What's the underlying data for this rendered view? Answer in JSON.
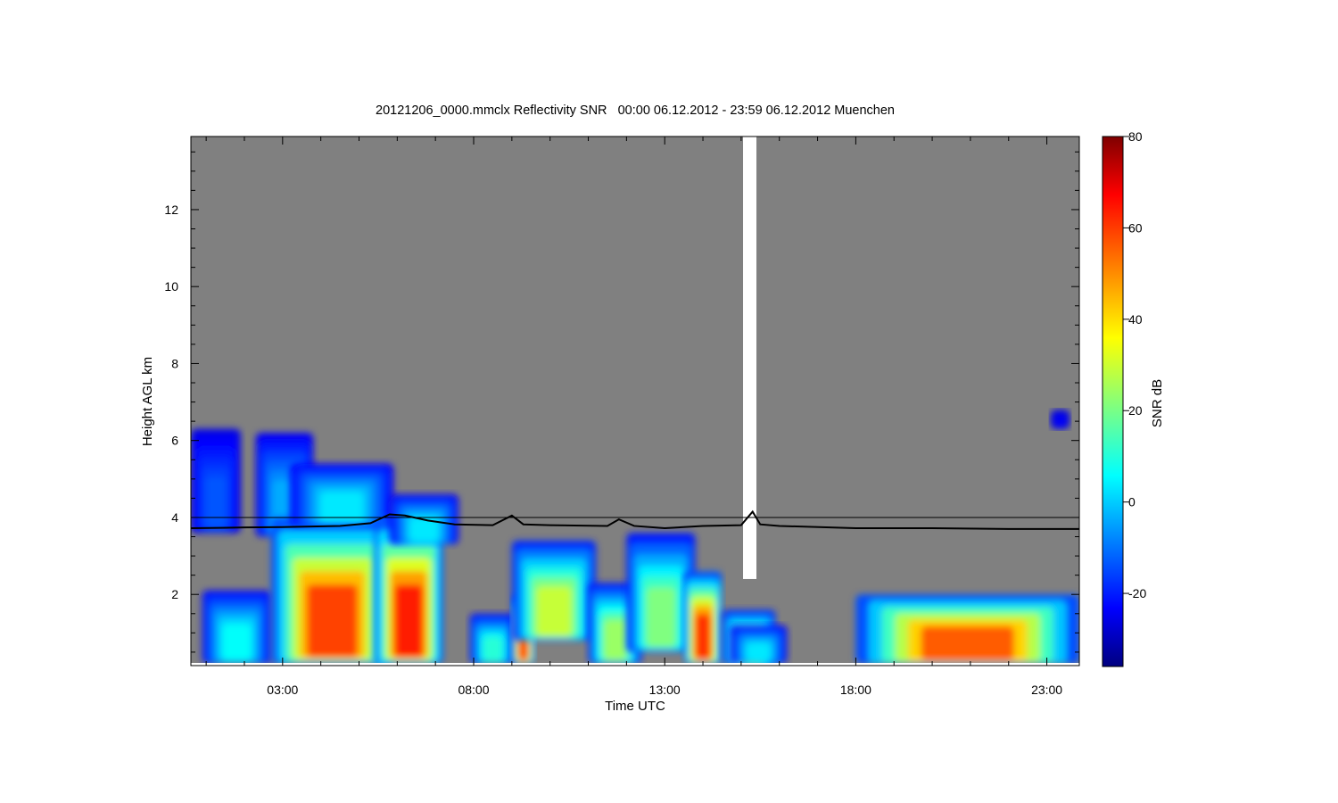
{
  "chart_data": {
    "type": "heatmap",
    "title": "20121206_0000.mmclx Reflectivity SNR   00:00 06.12.2012 - 23:59 06.12.2012 Muenchen",
    "xlabel": "Time UTC",
    "ylabel": "Height AGL km",
    "x_unit": "hours UTC",
    "xlim": [
      0.6,
      23.85
    ],
    "ylim": [
      0.15,
      13.9
    ],
    "x_ticks": [
      3,
      8,
      13,
      18,
      23
    ],
    "x_tick_labels": [
      "03:00",
      "08:00",
      "13:00",
      "18:00",
      "23:00"
    ],
    "y_ticks": [
      2,
      4,
      6,
      8,
      10,
      12
    ],
    "y_tick_labels": [
      "2",
      "4",
      "6",
      "8",
      "10",
      "12"
    ],
    "background_color": "#808080",
    "colorbar": {
      "label": "SNR dB",
      "range": [
        -36,
        80
      ],
      "ticks": [
        -20,
        0,
        20,
        40,
        60,
        80
      ],
      "tick_labels": [
        "-20",
        "0",
        "20",
        "40",
        "60",
        "80"
      ],
      "colormap": "jet",
      "position": "right"
    },
    "reference_line": {
      "y": 4.0,
      "color": "#000000"
    },
    "series": [
      {
        "type": "line",
        "color": "#000000",
        "x": [
          0.6,
          2.0,
          3.0,
          4.5,
          5.3,
          5.8,
          6.2,
          6.8,
          7.5,
          8.5,
          9.0,
          9.3,
          10.0,
          11.5,
          11.8,
          12.2,
          13.0,
          14.0,
          15.0,
          15.3,
          15.5,
          16.0,
          18.0,
          20.0,
          22.0,
          23.85
        ],
        "y": [
          3.72,
          3.74,
          3.75,
          3.78,
          3.85,
          4.08,
          4.05,
          3.92,
          3.82,
          3.8,
          4.05,
          3.82,
          3.8,
          3.78,
          3.95,
          3.78,
          3.72,
          3.78,
          3.8,
          4.15,
          3.82,
          3.78,
          3.72,
          3.72,
          3.7,
          3.7
        ]
      }
    ],
    "echo_regions": [
      {
        "x": [
          0.6,
          1.9
        ],
        "y": [
          3.6,
          6.3
        ],
        "snr_peak": -12
      },
      {
        "x": [
          0.9,
          2.7
        ],
        "y": [
          0.2,
          2.1
        ],
        "snr_peak": 8
      },
      {
        "x": [
          2.3,
          3.8
        ],
        "y": [
          3.5,
          6.2
        ],
        "snr_peak": -2
      },
      {
        "x": [
          2.7,
          5.9
        ],
        "y": [
          0.2,
          4.0
        ],
        "snr_peak": 58
      },
      {
        "x": [
          3.2,
          5.9
        ],
        "y": [
          3.8,
          5.4
        ],
        "snr_peak": 5
      },
      {
        "x": [
          5.4,
          7.2
        ],
        "y": [
          0.2,
          4.0
        ],
        "snr_peak": 62
      },
      {
        "x": [
          5.8,
          7.6
        ],
        "y": [
          3.3,
          4.6
        ],
        "snr_peak": 5
      },
      {
        "x": [
          7.9,
          9.1
        ],
        "y": [
          0.2,
          1.5
        ],
        "snr_peak": 12
      },
      {
        "x": [
          9.0,
          9.6
        ],
        "y": [
          0.2,
          2.0
        ],
        "snr_peak": 58
      },
      {
        "x": [
          9.0,
          11.2
        ],
        "y": [
          0.8,
          3.4
        ],
        "snr_peak": 30
      },
      {
        "x": [
          11.0,
          12.4
        ],
        "y": [
          0.2,
          2.3
        ],
        "snr_peak": 25
      },
      {
        "x": [
          12.0,
          13.8
        ],
        "y": [
          0.5,
          3.6
        ],
        "snr_peak": 22
      },
      {
        "x": [
          13.5,
          14.5
        ],
        "y": [
          0.2,
          2.6
        ],
        "snr_peak": 60
      },
      {
        "x": [
          14.5,
          15.9
        ],
        "y": [
          0.2,
          1.6
        ],
        "snr_peak": 30
      },
      {
        "x": [
          14.7,
          16.2
        ],
        "y": [
          0.2,
          1.2
        ],
        "snr_peak": 5
      },
      {
        "x": [
          18.0,
          23.85
        ],
        "y": [
          0.2,
          2.0
        ],
        "snr_peak": 55
      },
      {
        "x": [
          23.1,
          23.6
        ],
        "y": [
          6.3,
          6.8
        ],
        "snr_peak": -22
      }
    ],
    "missing_data": [
      {
        "x": [
          15.05,
          15.4
        ],
        "y": [
          2.4,
          13.9
        ]
      }
    ],
    "grid": false,
    "legend": "none"
  }
}
